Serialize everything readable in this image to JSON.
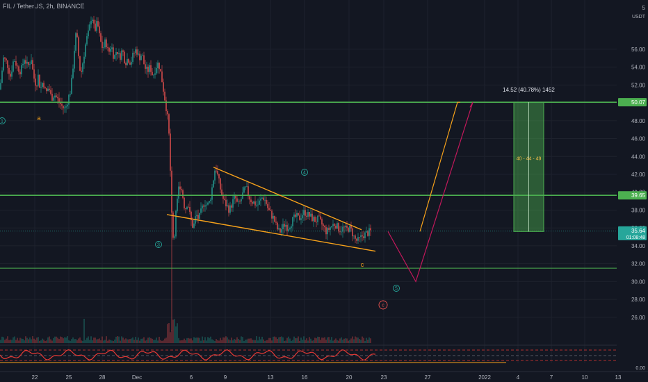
{
  "header": {
    "symbol_line": "FIL / TetherUS, 2h, BINANCE",
    "price_currency": "USDT"
  },
  "price_labels": {
    "current_price": "35.64",
    "countdown": "01:08:48",
    "level_upper": "50.07",
    "level_middle": "39.65",
    "corner": "5"
  },
  "measure": {
    "label": "14.52 (40.78%) 1452",
    "targets": "40 - 44 - 49"
  },
  "wave_labels": {
    "w1": "1",
    "wa": "a",
    "w3": "3",
    "w4": "4",
    "wc": "c",
    "w5": "5",
    "wC": "c"
  },
  "colors": {
    "background": "#131722",
    "up": "#26a69a",
    "down": "#ef5350",
    "level": "#4caf50",
    "trend": "#f7a21b",
    "projection_red": "#c2185b",
    "text": "#b2b5be"
  },
  "chart_data": {
    "type": "candlestick",
    "y_ticks": [
      "56.00",
      "54.00",
      "52.00",
      "50.00",
      "48.00",
      "46.00",
      "44.00",
      "42.00",
      "40.00",
      "38.00",
      "36.00",
      "34.00",
      "32.00",
      "30.00",
      "28.00",
      "26.00"
    ],
    "y_range": [
      24.2,
      60.5
    ],
    "x_ticks": [
      "22",
      "25",
      "28",
      "Dec",
      "6",
      "9",
      "13",
      "16",
      "20",
      "23",
      "27",
      "2022",
      "4",
      "7",
      "10",
      "13"
    ],
    "horizontal_levels": [
      50.07,
      39.65,
      31.5
    ],
    "oscillator_zero_label": "0.00",
    "price_path": [
      [
        0,
        51.5
      ],
      [
        2,
        53
      ],
      [
        5,
        55
      ],
      [
        10,
        54.5
      ],
      [
        15,
        53
      ],
      [
        20,
        55
      ],
      [
        25,
        54
      ],
      [
        30,
        53.5
      ],
      [
        35,
        55
      ],
      [
        40,
        54
      ],
      [
        45,
        55
      ],
      [
        48,
        53
      ],
      [
        52,
        52
      ],
      [
        55,
        53
      ],
      [
        58,
        51.5
      ],
      [
        62,
        52.5
      ],
      [
        66,
        51
      ],
      [
        70,
        51.8
      ],
      [
        74,
        50.5
      ],
      [
        78,
        51
      ],
      [
        82,
        50.5
      ],
      [
        86,
        50
      ],
      [
        90,
        49.5
      ],
      [
        94,
        49.3
      ],
      [
        98,
        50.5
      ],
      [
        102,
        51.5
      ],
      [
        106,
        55
      ],
      [
        108,
        57
      ],
      [
        110,
        58
      ],
      [
        112,
        56
      ],
      [
        116,
        53
      ],
      [
        120,
        55
      ],
      [
        124,
        57
      ],
      [
        128,
        58
      ],
      [
        132,
        60
      ],
      [
        136,
        58
      ],
      [
        140,
        59
      ],
      [
        144,
        57
      ],
      [
        148,
        56
      ],
      [
        152,
        57
      ],
      [
        156,
        55.5
      ],
      [
        160,
        56.5
      ],
      [
        164,
        55
      ],
      [
        168,
        56
      ],
      [
        172,
        55
      ],
      [
        176,
        56
      ],
      [
        180,
        54.5
      ],
      [
        184,
        55
      ],
      [
        188,
        54.5
      ],
      [
        192,
        55.5
      ],
      [
        196,
        56
      ],
      [
        200,
        55
      ],
      [
        204,
        55.5
      ],
      [
        208,
        54
      ],
      [
        212,
        53.5
      ],
      [
        216,
        54
      ],
      [
        220,
        53
      ],
      [
        224,
        54
      ],
      [
        228,
        54.5
      ],
      [
        232,
        53
      ],
      [
        236,
        51
      ],
      [
        240,
        49
      ],
      [
        243,
        47
      ],
      [
        246,
        40
      ],
      [
        248,
        36
      ],
      [
        250,
        34
      ],
      [
        252,
        37
      ],
      [
        255,
        39
      ],
      [
        258,
        41
      ],
      [
        262,
        40
      ],
      [
        266,
        38
      ],
      [
        270,
        39
      ],
      [
        274,
        37
      ],
      [
        278,
        36
      ],
      [
        282,
        37.5
      ],
      [
        286,
        37
      ],
      [
        290,
        38
      ],
      [
        294,
        39
      ],
      [
        298,
        38.5
      ],
      [
        302,
        39
      ],
      [
        306,
        41
      ],
      [
        310,
        43
      ],
      [
        314,
        41.5
      ],
      [
        318,
        40
      ],
      [
        322,
        39
      ],
      [
        326,
        38.5
      ],
      [
        330,
        38
      ],
      [
        334,
        38.8
      ],
      [
        338,
        39.5
      ],
      [
        342,
        38.5
      ],
      [
        346,
        39
      ],
      [
        350,
        40
      ],
      [
        354,
        40.5
      ],
      [
        358,
        39.5
      ],
      [
        362,
        39
      ],
      [
        366,
        38.8
      ],
      [
        370,
        38.5
      ],
      [
        374,
        39
      ],
      [
        378,
        39.5
      ],
      [
        382,
        39
      ],
      [
        386,
        38
      ],
      [
        390,
        37.5
      ],
      [
        394,
        37
      ],
      [
        398,
        36
      ],
      [
        402,
        35.5
      ],
      [
        406,
        36
      ],
      [
        410,
        36.5
      ],
      [
        414,
        36
      ],
      [
        418,
        36.5
      ],
      [
        422,
        37
      ],
      [
        426,
        37.3
      ],
      [
        430,
        37
      ],
      [
        434,
        37.5
      ],
      [
        438,
        37.8
      ],
      [
        442,
        37.5
      ],
      [
        446,
        37.3
      ],
      [
        450,
        37
      ],
      [
        454,
        36.8
      ],
      [
        458,
        37
      ],
      [
        462,
        36.5
      ],
      [
        466,
        36
      ],
      [
        470,
        35.5
      ],
      [
        474,
        36
      ],
      [
        478,
        36.3
      ],
      [
        482,
        36.5
      ],
      [
        486,
        36
      ],
      [
        490,
        35.8
      ],
      [
        494,
        36
      ],
      [
        498,
        35.8
      ],
      [
        502,
        36
      ],
      [
        506,
        35.6
      ],
      [
        510,
        34.8
      ],
      [
        514,
        34.5
      ],
      [
        518,
        34.8
      ],
      [
        522,
        35.2
      ],
      [
        526,
        35.3
      ],
      [
        530,
        35.5
      ],
      [
        534,
        35.64
      ]
    ],
    "wedge_upper": [
      [
        307,
        42.8
      ],
      [
        520,
        35.8
      ]
    ],
    "wedge_lower": [
      [
        240,
        37.5
      ],
      [
        540,
        33.4
      ]
    ],
    "projection_orange": [
      [
        604,
        35.6
      ],
      [
        658,
        50.07
      ],
      [
        662,
        50.07
      ]
    ],
    "projection_red": [
      [
        558,
        35.6
      ],
      [
        598,
        30.0
      ],
      [
        680,
        50.07
      ],
      [
        676,
        49.5
      ]
    ],
    "measure_box": {
      "x": [
        739,
        782
      ],
      "y": [
        35.6,
        50.07
      ]
    }
  }
}
